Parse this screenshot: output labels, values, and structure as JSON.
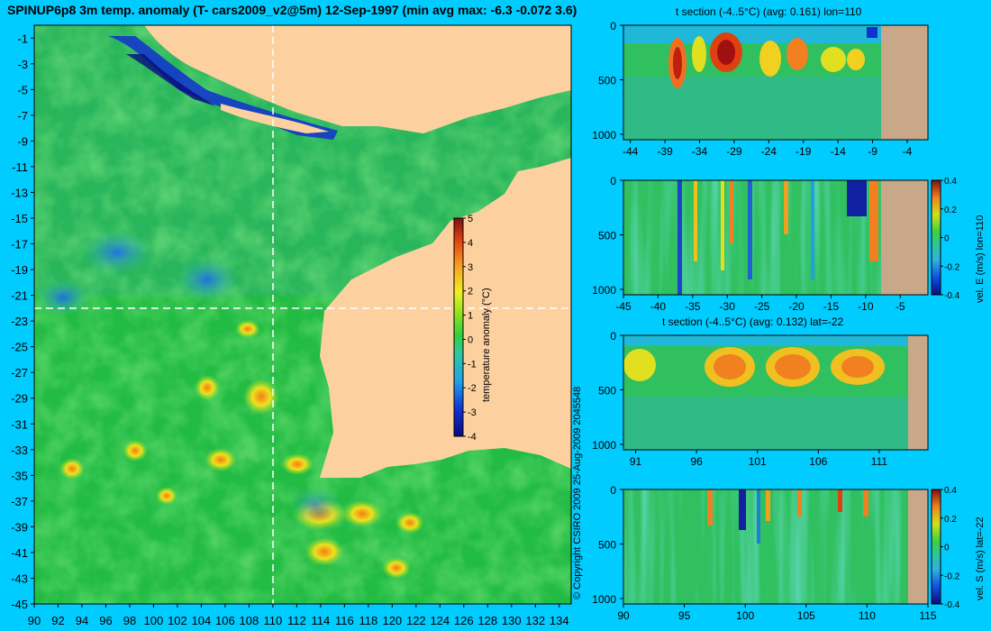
{
  "header": {
    "title": "SPINUP6p8 3m temp. anomaly (T- cars2009_v2@5m) 12-Sep-1997 (min avg max: -6.3 -0.072 3.6)"
  },
  "copyright": "© Copyright CSIRO 2009  25-Aug-2009 2045548",
  "colors": {
    "background": "#00ccff",
    "land": "#fdd0a0",
    "section_land": "#c8a888",
    "ocean_base": "#22bb44"
  },
  "chart_data": [
    {
      "type": "heatmap",
      "id": "map",
      "title": "",
      "xlabel": "",
      "ylabel": "",
      "xlim": [
        90,
        135
      ],
      "ylim": [
        -45,
        0
      ],
      "x_ticks": [
        "90",
        "92",
        "94",
        "96",
        "98",
        "100",
        "102",
        "104",
        "106",
        "108",
        "110",
        "112",
        "114",
        "116",
        "118",
        "120",
        "122",
        "124",
        "126",
        "128",
        "130",
        "132",
        "134"
      ],
      "y_ticks": [
        "-1",
        "-3",
        "-5",
        "-7",
        "-9",
        "-11",
        "-13",
        "-15",
        "-17",
        "-19",
        "-21",
        "-23",
        "-25",
        "-27",
        "-29",
        "-31",
        "-33",
        "-35",
        "-37",
        "-39",
        "-41",
        "-43",
        "-45"
      ],
      "crosshair": {
        "lon": 110,
        "lat": -22
      },
      "colorbar": {
        "label": "temperature anomaly (°C)",
        "range": [
          -4,
          5
        ],
        "ticks": [
          "5",
          "4",
          "3",
          "2",
          "1",
          "0",
          "-1",
          "-2",
          "-3",
          "-4"
        ]
      }
    },
    {
      "type": "heatmap",
      "id": "section1",
      "title": "t section (-4..5°C) (avg: 0.161) lon=110",
      "xlim": [
        -45,
        -1
      ],
      "ylim": [
        1050,
        0
      ],
      "x_ticks": [
        "-44",
        "-39",
        "-34",
        "-29",
        "-24",
        "-19",
        "-14",
        "-9",
        "-4"
      ],
      "y_ticks": [
        "0",
        "500",
        "1000"
      ],
      "land_from_x": -8
    },
    {
      "type": "heatmap",
      "id": "section2",
      "title": "",
      "xlim": [
        -45,
        -1
      ],
      "ylim": [
        1050,
        0
      ],
      "x_ticks": [
        "-45",
        "-40",
        "-35",
        "-30",
        "-25",
        "-20",
        "-15",
        "-10",
        "-5"
      ],
      "y_ticks": [
        "0",
        "500",
        "1000"
      ],
      "land_from_x": -8,
      "colorbar": {
        "label": "vel. E (m/s) lon=110",
        "range": [
          -0.4,
          0.4
        ],
        "ticks": [
          "0.4",
          "0.2",
          "0",
          "-0.2",
          "-0.4"
        ]
      }
    },
    {
      "type": "heatmap",
      "id": "section3",
      "title": "t section (-4..5°C) (avg: 0.132) lat=-22",
      "xlim": [
        90,
        115
      ],
      "ylim": [
        1050,
        0
      ],
      "x_ticks": [
        "91",
        "96",
        "101",
        "106",
        "111"
      ],
      "y_ticks": [
        "0",
        "500",
        "1000"
      ],
      "land_from_x": 114
    },
    {
      "type": "heatmap",
      "id": "section4",
      "title": "",
      "xlim": [
        90,
        115
      ],
      "ylim": [
        1050,
        0
      ],
      "x_ticks": [
        "90",
        "95",
        "100",
        "105",
        "110",
        "115"
      ],
      "y_ticks": [
        "0",
        "500",
        "1000"
      ],
      "land_from_x": 114,
      "colorbar": {
        "label": "vel. S (m/s) lat=-22",
        "range": [
          -0.4,
          0.4
        ],
        "ticks": [
          "0.4",
          "0.2",
          "0",
          "-0.2",
          "-0.4"
        ]
      }
    }
  ]
}
